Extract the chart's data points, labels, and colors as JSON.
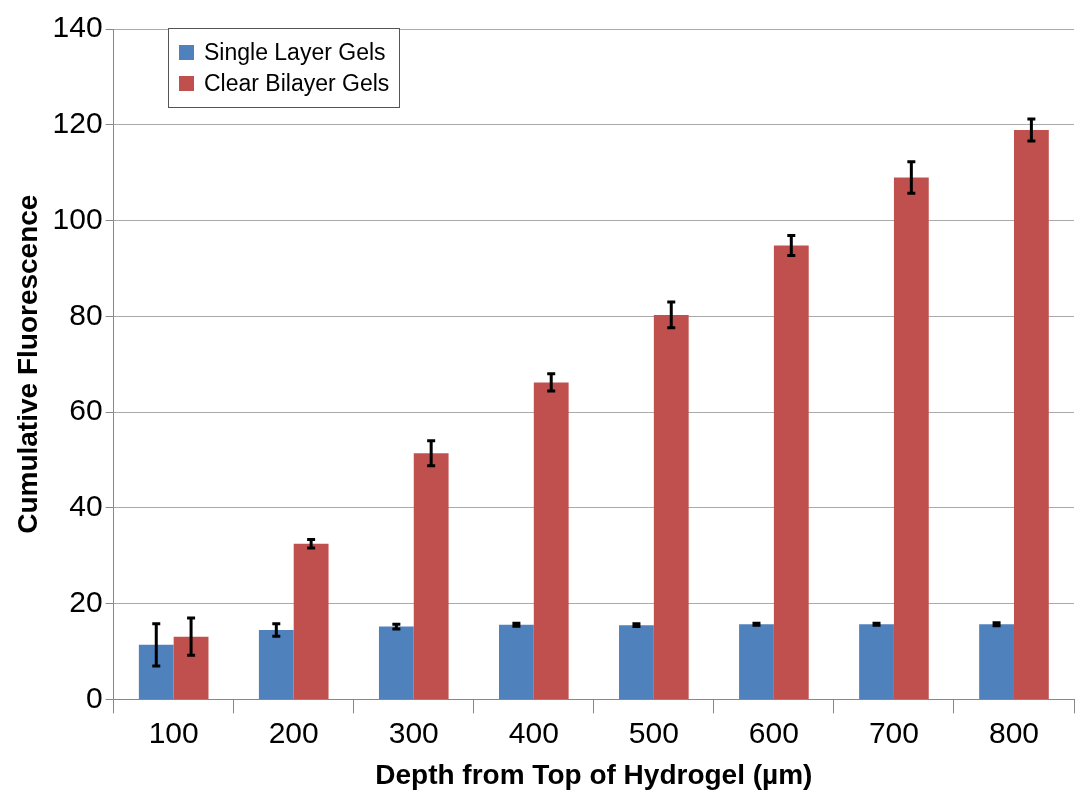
{
  "chart_data": {
    "type": "bar",
    "xlabel": "Depth from Top of Hydrogel (µm)",
    "ylabel": "Cumulative Fluorescence",
    "categories": [
      "100",
      "200",
      "300",
      "400",
      "500",
      "600",
      "700",
      "800"
    ],
    "series": [
      {
        "name": "Single Layer Gels",
        "color": "#4f81bd",
        "values": [
          11.4,
          14.5,
          15.2,
          15.6,
          15.5,
          15.7,
          15.7,
          15.7
        ],
        "errors": [
          4.4,
          1.3,
          0.5,
          0.3,
          0.3,
          0.2,
          0.2,
          0.3
        ]
      },
      {
        "name": "Clear Bilayer Gels",
        "color": "#c0504d",
        "values": [
          13.1,
          32.5,
          51.4,
          66.2,
          80.3,
          94.8,
          109.0,
          118.9
        ],
        "errors": [
          3.9,
          0.9,
          2.6,
          1.8,
          2.7,
          2.1,
          3.3,
          2.3
        ]
      }
    ],
    "ylim": [
      0,
      140
    ],
    "yticks": [
      0,
      20,
      40,
      60,
      80,
      100,
      120,
      140
    ],
    "grid": "y",
    "legend": "top left"
  }
}
